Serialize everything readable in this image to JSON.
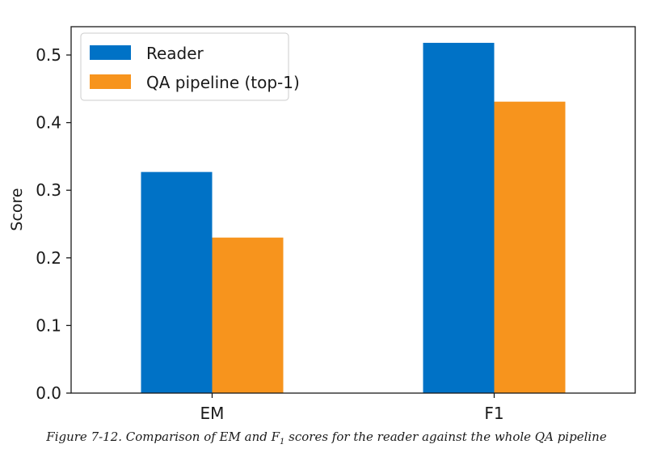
{
  "chart_data": {
    "type": "bar",
    "categories": [
      "EM",
      "F1"
    ],
    "series": [
      {
        "name": "Reader",
        "values": [
          0.327,
          0.518
        ],
        "color": "#0072c6"
      },
      {
        "name": "QA pipeline (top-1)",
        "values": [
          0.23,
          0.431
        ],
        "color": "#f7941d"
      }
    ],
    "ylabel": "Score",
    "ylim": [
      0,
      0.55
    ],
    "yticks": [
      "0.0",
      "0.1",
      "0.2",
      "0.3",
      "0.4",
      "0.5"
    ],
    "legend": "top-left",
    "grid": false
  },
  "caption": {
    "prefix": "Figure 7-12. Comparison of EM and F",
    "subscript": "1",
    "suffix": " scores for the reader against the whole QA pipeline"
  }
}
